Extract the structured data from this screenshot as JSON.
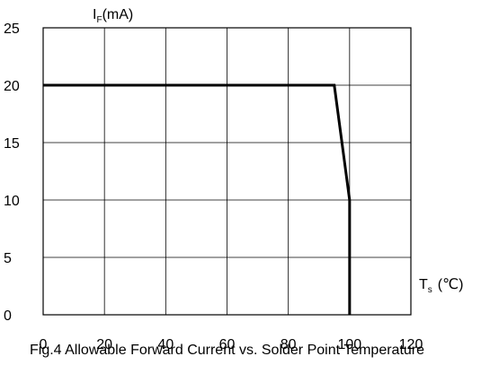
{
  "chart_data": {
    "type": "line",
    "title": "",
    "caption": "Fig.4 Allowable Forward Current vs. Solder Point Temperature",
    "ylabel": {
      "main": "I",
      "sub": "F",
      "unit": "(mA)"
    },
    "xlabel": {
      "main": "T",
      "sub": "s",
      "unit": "(℃)"
    },
    "xlim": [
      0,
      120
    ],
    "ylim": [
      0,
      25
    ],
    "x_ticks": [
      0,
      20,
      40,
      60,
      80,
      100,
      120
    ],
    "y_ticks": [
      0,
      5,
      10,
      15,
      20,
      25
    ],
    "grid": true,
    "series": [
      {
        "x": [
          0,
          95,
          100,
          100
        ],
        "y": [
          20,
          20,
          10,
          0
        ]
      }
    ]
  }
}
